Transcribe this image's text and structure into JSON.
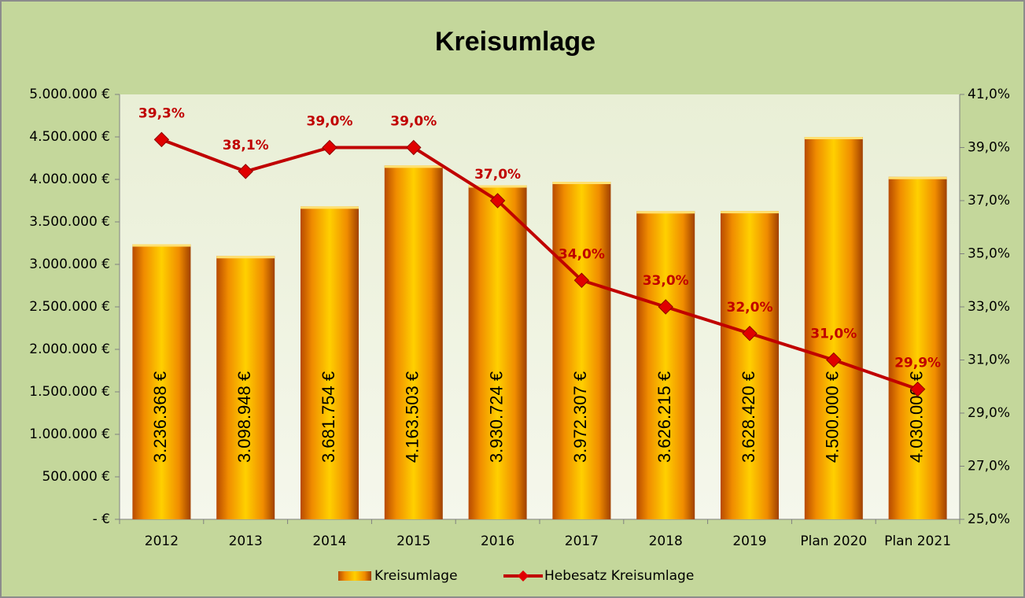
{
  "chart_data": {
    "type": "bar",
    "title": "Kreisumlage",
    "categories": [
      "2012",
      "2013",
      "2014",
      "2015",
      "2016",
      "2017",
      "2018",
      "2019",
      "Plan 2020",
      "Plan 2021"
    ],
    "series": [
      {
        "name": "Kreisumlage",
        "color": "#f5a000",
        "values": [
          3236368,
          3098948,
          3681754,
          4163503,
          3930724,
          3972307,
          3626215,
          3628420,
          4500000,
          4030000
        ],
        "value_labels": [
          "3.236.368 €",
          "3.098.948 €",
          "3.681.754 €",
          "4.163.503 €",
          "3.930.724 €",
          "3.972.307 €",
          "3.626.215 €",
          "3.628.420 €",
          "4.500.000 €",
          "4.030.000 €"
        ]
      },
      {
        "name": "Hebesatz Kreisumlage",
        "color": "#c00000",
        "axis": "y2",
        "type": "line",
        "values": [
          39.3,
          38.1,
          39.0,
          39.0,
          37.0,
          34.0,
          33.0,
          32.0,
          31.0,
          29.9
        ],
        "value_labels": [
          "39,3%",
          "38,1%",
          "39,0%",
          "39,0%",
          "37,0%",
          "34,0%",
          "33,0%",
          "32,0%",
          "31,0%",
          "29,9%"
        ]
      }
    ],
    "ylim": [
      0,
      5000000
    ],
    "yticks": [
      {
        "value": 0,
        "label": "-   €"
      },
      {
        "value": 500000,
        "label": "500.000 €"
      },
      {
        "value": 1000000,
        "label": "1.000.000 €"
      },
      {
        "value": 1500000,
        "label": "1.500.000 €"
      },
      {
        "value": 2000000,
        "label": "2.000.000 €"
      },
      {
        "value": 2500000,
        "label": "2.500.000 €"
      },
      {
        "value": 3000000,
        "label": "3.000.000 €"
      },
      {
        "value": 3500000,
        "label": "3.500.000 €"
      },
      {
        "value": 4000000,
        "label": "4.000.000 €"
      },
      {
        "value": 4500000,
        "label": "4.500.000 €"
      },
      {
        "value": 5000000,
        "label": "5.000.000 €"
      }
    ],
    "y2lim": [
      25,
      41
    ],
    "y2ticks": [
      {
        "value": 25,
        "label": "25,0%"
      },
      {
        "value": 27,
        "label": "27,0%"
      },
      {
        "value": 29,
        "label": "29,0%"
      },
      {
        "value": 31,
        "label": "31,0%"
      },
      {
        "value": 33,
        "label": "33,0%"
      },
      {
        "value": 35,
        "label": "35,0%"
      },
      {
        "value": 37,
        "label": "37,0%"
      },
      {
        "value": 39,
        "label": "39,0%"
      },
      {
        "value": 41,
        "label": "41,0%"
      }
    ],
    "grid": false,
    "legend": "bottom"
  }
}
